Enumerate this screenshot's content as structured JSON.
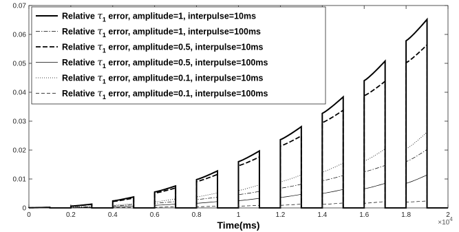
{
  "chart_data": {
    "type": "line",
    "title": "",
    "xlabel": "Time(ms)",
    "ylabel": "",
    "x_exponent_label": "×10",
    "x_exponent_power": "4",
    "xlim": [
      0,
      20000
    ],
    "ylim": [
      0,
      0.07
    ],
    "xticks": [
      0,
      2000,
      4000,
      6000,
      8000,
      10000,
      12000,
      14000,
      16000,
      18000,
      20000
    ],
    "xtick_labels": [
      "0",
      "0.2",
      "0.4",
      "0.6",
      "0.8",
      "1",
      "1.2",
      "1.4",
      "1.6",
      "1.8",
      "2"
    ],
    "yticks": [
      0,
      0.01,
      0.02,
      0.03,
      0.04,
      0.05,
      0.06,
      0.07
    ],
    "ytick_labels": [
      "0",
      "0.01",
      "0.02",
      "0.03",
      "0.04",
      "0.05",
      "0.06",
      "0.07"
    ],
    "grid": false,
    "legend_position": "top-left",
    "pulse_starts": [
      0,
      2000,
      4000,
      6000,
      8000,
      10000,
      12000,
      14000,
      16000,
      18000
    ],
    "pulse_width": 1000,
    "series": [
      {
        "name_prefix": "Relative ",
        "name_symbol": "τ",
        "name_sub": "1",
        "name_suffix": " error, amplitude=1, interpulse=10ms",
        "style": "solid-thick",
        "start_values": [
          5e-05,
          0.0006,
          0.0024,
          0.0055,
          0.0098,
          0.016,
          0.0236,
          0.0327,
          0.044,
          0.0578
        ],
        "end_values": [
          0.0002,
          0.0013,
          0.0038,
          0.0076,
          0.0128,
          0.0197,
          0.0281,
          0.0384,
          0.0508,
          0.0652
        ]
      },
      {
        "name_prefix": "Relative ",
        "name_symbol": "τ",
        "name_sub": "1",
        "name_suffix": " error, amplitude=1, interpulse=100ms",
        "style": "dashdot",
        "start_values": [
          2e-05,
          0.0002,
          0.0007,
          0.0016,
          0.0029,
          0.0046,
          0.0068,
          0.0094,
          0.0125,
          0.016
        ],
        "end_values": [
          5e-05,
          0.0004,
          0.0011,
          0.0022,
          0.0037,
          0.0057,
          0.0082,
          0.0112,
          0.0147,
          0.0202
        ]
      },
      {
        "name_prefix": "Relative ",
        "name_symbol": "τ",
        "name_sub": "1",
        "name_suffix": " error, amplitude=0.5, interpulse=10ms",
        "style": "dashed-thick",
        "start_values": [
          5e-05,
          0.0006,
          0.0022,
          0.0051,
          0.0091,
          0.0146,
          0.0214,
          0.0295,
          0.0388,
          0.0502
        ],
        "end_values": [
          0.00018,
          0.0012,
          0.0034,
          0.0069,
          0.0116,
          0.0176,
          0.0249,
          0.0338,
          0.0438,
          0.0564
        ]
      },
      {
        "name_prefix": "Relative ",
        "name_symbol": "τ",
        "name_sub": "1",
        "name_suffix": " error, amplitude=0.5, interpulse=100ms",
        "style": "solid-thin",
        "start_values": [
          1e-05,
          0.0001,
          0.0004,
          0.0009,
          0.0016,
          0.0025,
          0.0036,
          0.005,
          0.0066,
          0.0085
        ],
        "end_values": [
          3e-05,
          0.0002,
          0.0006,
          0.0013,
          0.0022,
          0.0033,
          0.0047,
          0.0064,
          0.0085,
          0.0114
        ]
      },
      {
        "name_prefix": "Relative ",
        "name_symbol": "τ",
        "name_sub": "1",
        "name_suffix": " error, amplitude=0.1, interpulse=10ms",
        "style": "dotted",
        "start_values": [
          3e-05,
          0.0003,
          0.0009,
          0.0021,
          0.0038,
          0.006,
          0.009,
          0.0124,
          0.0162,
          0.0204
        ],
        "end_values": [
          8e-05,
          0.0005,
          0.0015,
          0.0031,
          0.0052,
          0.008,
          0.0114,
          0.0155,
          0.0204,
          0.0262
        ]
      },
      {
        "name_prefix": "Relative ",
        "name_symbol": "τ",
        "name_sub": "1",
        "name_suffix": " error, amplitude=0.1, interpulse=100ms",
        "style": "dashed-thin",
        "start_values": [
          0.0,
          3e-05,
          0.0001,
          0.0002,
          0.0004,
          0.0006,
          0.0009,
          0.0012,
          0.0016,
          0.002
        ],
        "end_values": [
          1e-05,
          6e-05,
          0.0002,
          0.0004,
          0.0006,
          0.0009,
          0.0013,
          0.0017,
          0.0022,
          0.0024
        ]
      }
    ]
  }
}
